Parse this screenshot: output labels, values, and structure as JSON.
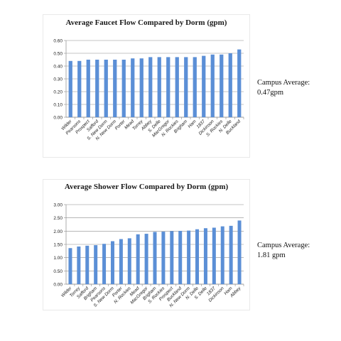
{
  "chart_data": [
    {
      "type": "bar",
      "title": "Average Faucet Flow Compared by Dorm (gpm)",
      "categories": [
        "Wilder",
        "Pearsons",
        "Prospect",
        "Safford",
        "S. New Dorm",
        "N. New Dorm",
        "Porter",
        "Mead",
        "Torrey",
        "Abbey",
        "S. Delle",
        "MacGregor",
        "N. Rockies",
        "Brigham",
        "Ham",
        "1837",
        "Dickinson",
        "S. Rockies",
        "N. Delle",
        "Buckland"
      ],
      "values": [
        0.44,
        0.44,
        0.45,
        0.45,
        0.45,
        0.45,
        0.45,
        0.46,
        0.46,
        0.47,
        0.47,
        0.47,
        0.47,
        0.47,
        0.47,
        0.48,
        0.49,
        0.49,
        0.5,
        0.53
      ],
      "ylim": [
        0,
        0.6
      ],
      "yticks": [
        "0.00",
        "0.10",
        "0.20",
        "0.30",
        "0.40",
        "0.50",
        "0.60"
      ],
      "grid": true,
      "bar_color": "#5b8fd6",
      "xlabel": "",
      "ylabel": ""
    },
    {
      "type": "bar",
      "title": "Average Shower Flow Compared by Dorm (gpm)",
      "categories": [
        "Wilder",
        "Torrey",
        "Safford",
        "Brigham",
        "Pearsons",
        "S. New Dorm",
        "Porter",
        "N. Rockies",
        "Mead",
        "MacGregor",
        "Brigham",
        "S. Rockies",
        "Prospect",
        "Buckland",
        "N. New Dorm",
        "N. Delle",
        "S. Delle",
        "1837",
        "Dickinson",
        "Ham",
        "Abbey"
      ],
      "values": [
        1.36,
        1.42,
        1.45,
        1.47,
        1.52,
        1.62,
        1.7,
        1.73,
        1.88,
        1.9,
        1.97,
        1.98,
        2.0,
        2.01,
        2.02,
        2.07,
        2.11,
        2.13,
        2.18,
        2.2,
        2.4
      ],
      "ylim": [
        0,
        3.0
      ],
      "yticks": [
        "0.00",
        "0.50",
        "1.00",
        "1.50",
        "2.00",
        "2.50",
        "3.00"
      ],
      "grid": true,
      "bar_color": "#5b8fd6",
      "xlabel": "",
      "ylabel": ""
    }
  ],
  "notes": {
    "faucet": {
      "line1": "Campus Average:",
      "line2": "0.47gpm"
    },
    "shower": {
      "line1": "Campus Average:",
      "line2": "1.81 gpm"
    }
  }
}
